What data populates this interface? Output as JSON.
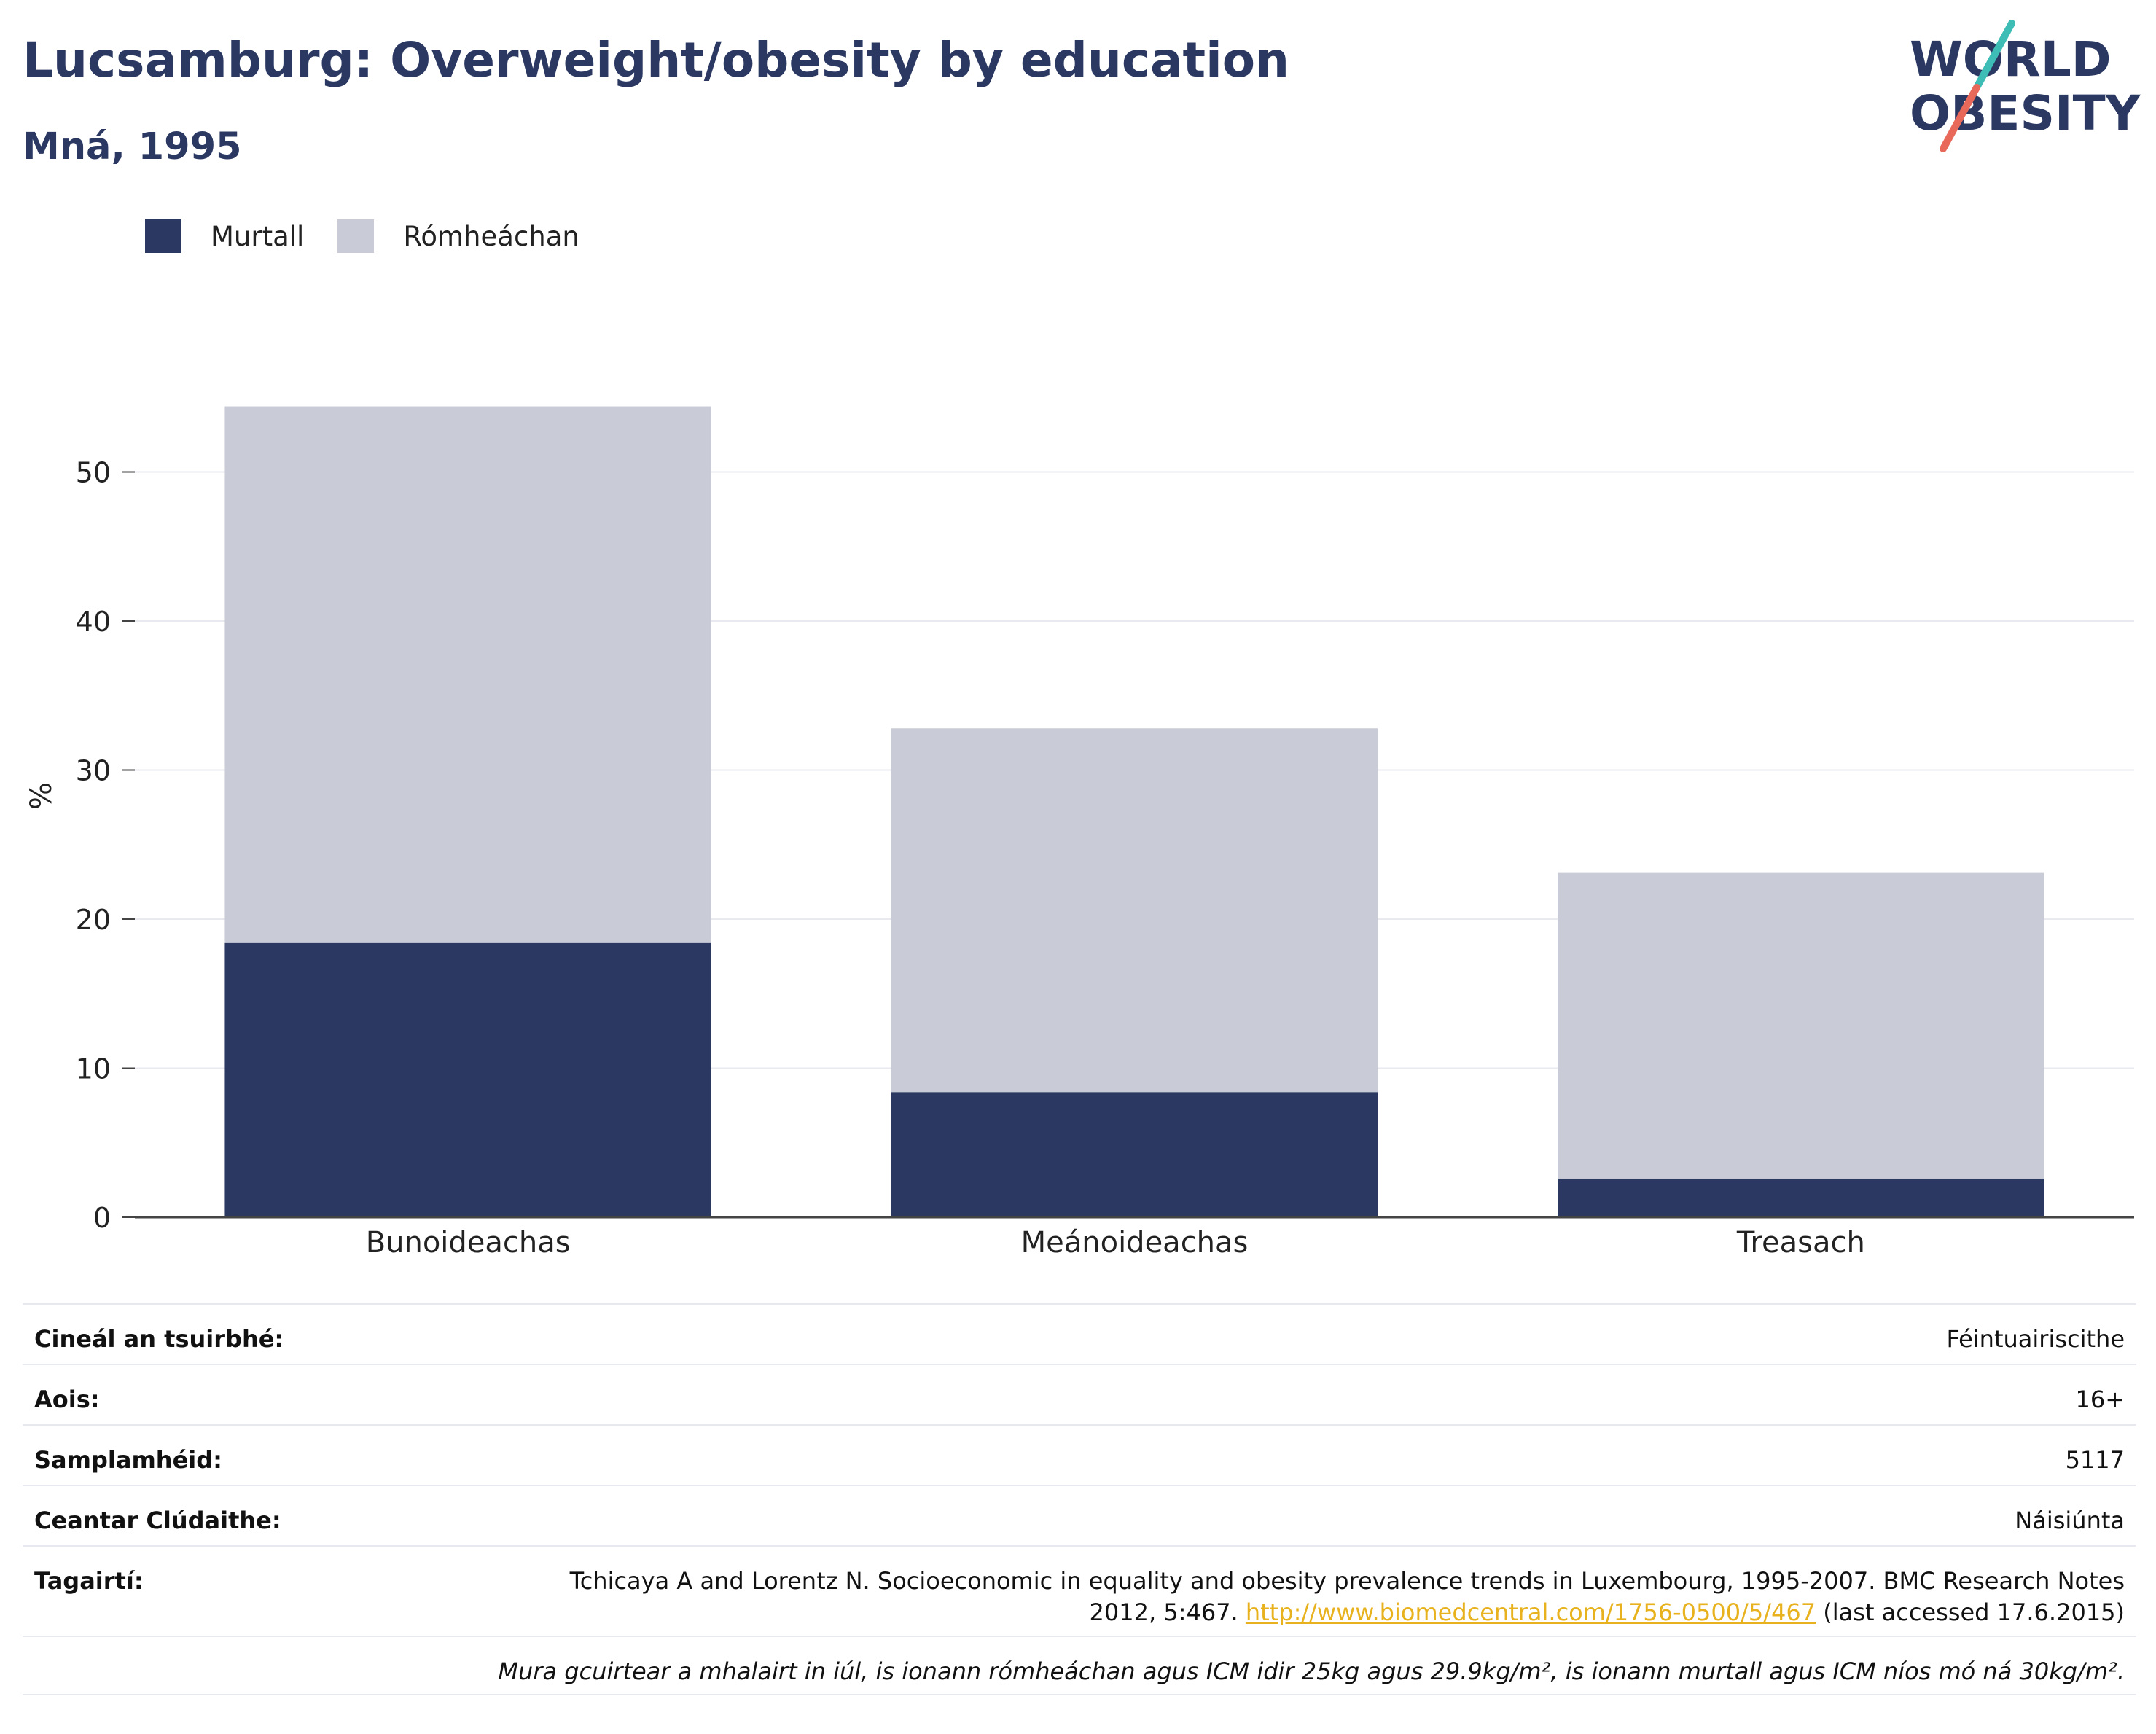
{
  "header": {
    "title": "Lucsamburg: Overweight/obesity by education",
    "subtitle": "Mná, 1995",
    "logo": {
      "line1": "WORLD",
      "line2": "OBESITY"
    }
  },
  "colors": {
    "obese": "#2a3862",
    "overweight": "#c9ccd7",
    "title": "#2a3862",
    "link": "#e8b21f",
    "logo_teal": "#3dbdb5",
    "logo_coral": "#e8695a"
  },
  "chart_data": {
    "type": "bar",
    "stacked": true,
    "title": "",
    "xlabel": "",
    "ylabel": "%",
    "ylim": [
      0,
      55
    ],
    "yticks": [
      0,
      10,
      20,
      30,
      40,
      50
    ],
    "grid": true,
    "legend_position": "top-left",
    "categories": [
      "Bunoideachas",
      "Meánoideachas",
      "Treasach"
    ],
    "series": [
      {
        "name": "Murtall",
        "values": [
          18.4,
          8.4,
          2.6
        ]
      },
      {
        "name": "Rómheáchan",
        "values": [
          36.0,
          24.4,
          20.5
        ]
      }
    ]
  },
  "info": {
    "survey_type": {
      "label": "Cineál an tsuirbhé:",
      "value": "Féintuairiscithe"
    },
    "age": {
      "label": "Aois:",
      "value": "16+"
    },
    "sample_size": {
      "label": "Samplamhéid:",
      "value": "5117"
    },
    "area": {
      "label": "Ceantar Clúdaithe:",
      "value": "Náisiúnta"
    },
    "references": {
      "label": "Tagairtí:",
      "text_line1": "Tchicaya A and Lorentz N. Socioeconomic in equality and obesity prevalence trends in Luxembourg, 1995-2007. BMC Research Notes",
      "text_line2": "2012, 5:467.",
      "link": "http://www.biomedcentral.com/1756-0500/5/467",
      "accessed": "(last accessed 17.6.2015)"
    },
    "note": "Mura gcuirtear a mhalairt in iúl, is ionann rómheáchan agus ICM idir 25kg agus 29.9kg/m², is ionann murtall agus ICM níos mó ná 30kg/m²."
  }
}
